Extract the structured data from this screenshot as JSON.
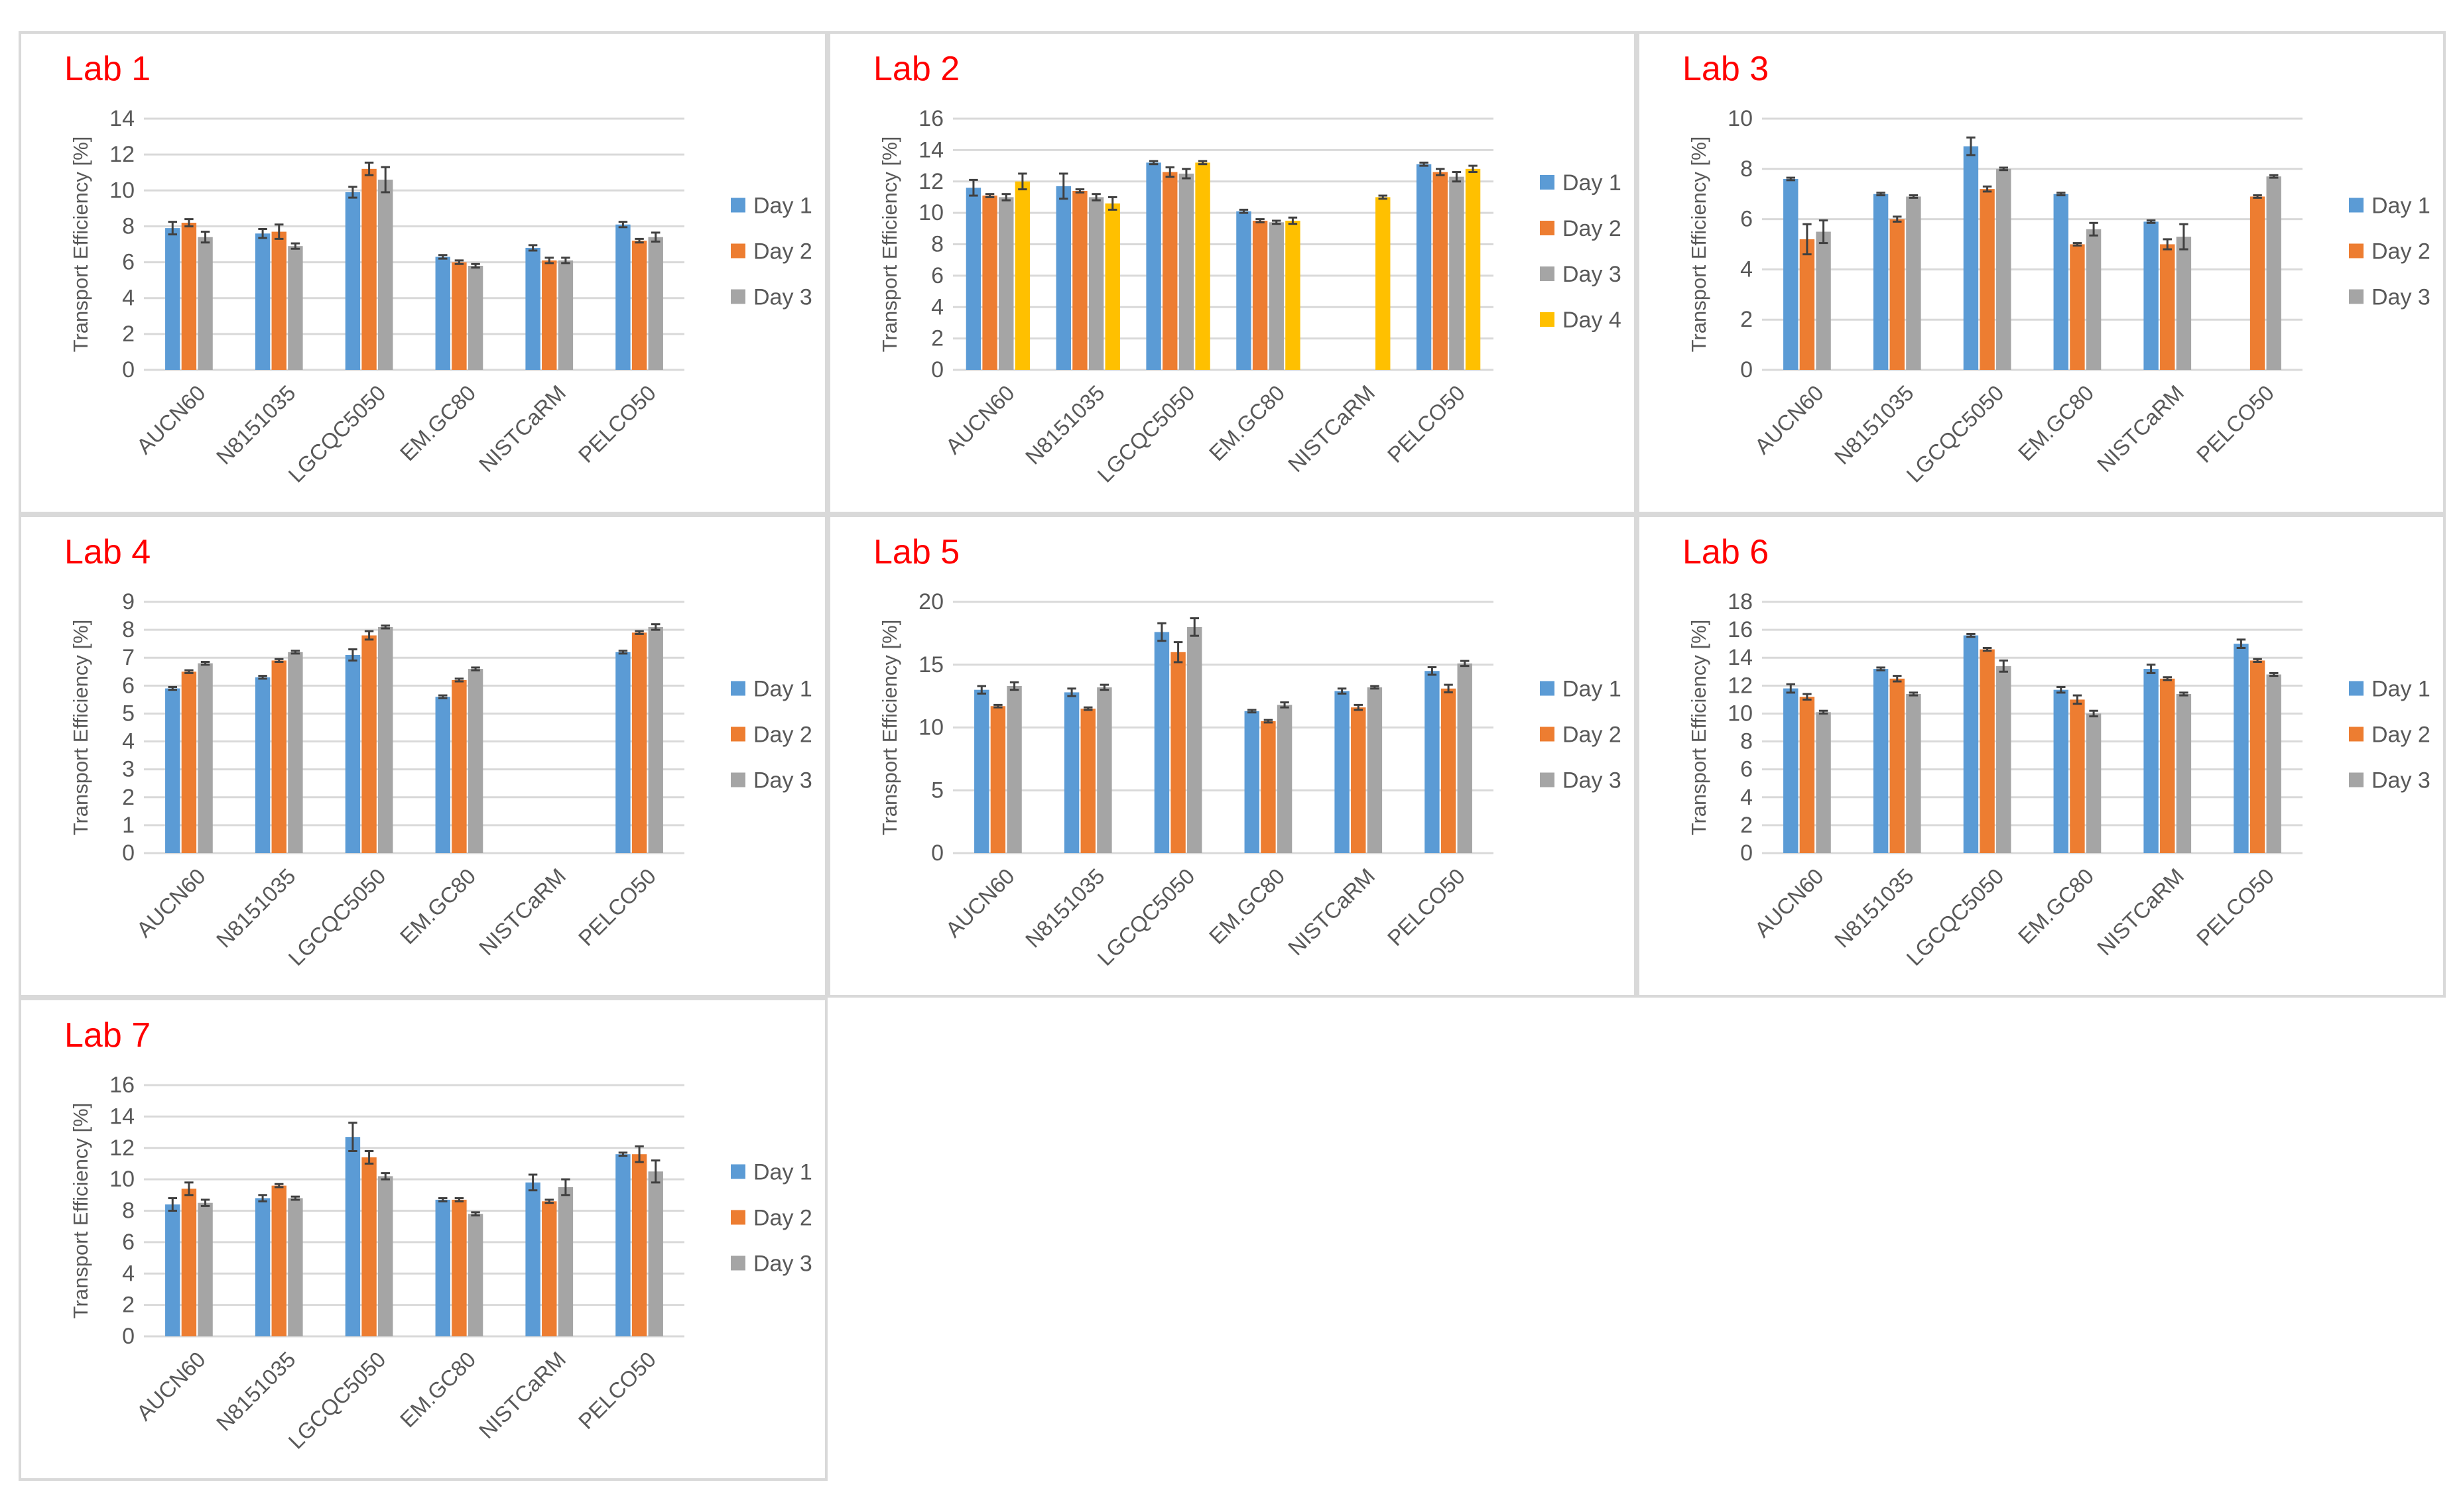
{
  "colors": {
    "Day 1": "#5b9bd5",
    "Day 2": "#ed7d31",
    "Day 3": "#a5a5a5",
    "Day 4": "#ffc000"
  },
  "chart_data": [
    {
      "type": "bar",
      "title": "Lab 1",
      "ylabel": "Transport Efficiency [%]",
      "categories": [
        "AUCN60",
        "N8151035",
        "LGCQC5050",
        "EM.GC80",
        "NISTCaRM",
        "PELCO50"
      ],
      "ylim": [
        0,
        14
      ],
      "yticks": [
        "0",
        "2",
        "4",
        "6",
        "8",
        "10",
        "12",
        "14"
      ],
      "series": [
        {
          "name": "Day 1",
          "values": [
            7.9,
            7.6,
            9.9,
            6.3,
            6.8,
            8.1
          ],
          "errors": [
            0.35,
            0.25,
            0.3,
            0.1,
            0.15,
            0.15
          ]
        },
        {
          "name": "Day 2",
          "values": [
            8.2,
            7.7,
            11.2,
            6.0,
            6.1,
            7.2
          ],
          "errors": [
            0.2,
            0.4,
            0.35,
            0.1,
            0.15,
            0.1
          ]
        },
        {
          "name": "Day 3",
          "values": [
            7.4,
            6.9,
            10.6,
            5.8,
            6.1,
            7.4
          ],
          "errors": [
            0.3,
            0.15,
            0.7,
            0.1,
            0.15,
            0.25
          ]
        }
      ]
    },
    {
      "type": "bar",
      "title": "Lab 2",
      "ylabel": "Transport Efficiency [%]",
      "categories": [
        "AUCN60",
        "N8151035",
        "LGCQC5050",
        "EM.GC80",
        "NISTCaRM",
        "PELCO50"
      ],
      "ylim": [
        0,
        16
      ],
      "yticks": [
        "0",
        "2",
        "4",
        "6",
        "8",
        "10",
        "12",
        "14",
        "16"
      ],
      "series": [
        {
          "name": "Day 1",
          "values": [
            11.6,
            11.7,
            13.2,
            10.1,
            null,
            13.1
          ],
          "errors": [
            0.5,
            0.8,
            0.1,
            0.1,
            null,
            0.1
          ]
        },
        {
          "name": "Day 2",
          "values": [
            11.1,
            11.4,
            12.6,
            9.5,
            null,
            12.6
          ],
          "errors": [
            0.1,
            0.1,
            0.3,
            0.1,
            null,
            0.2
          ]
        },
        {
          "name": "Day 3",
          "values": [
            11.0,
            11.0,
            12.5,
            9.4,
            null,
            12.3
          ],
          "errors": [
            0.2,
            0.2,
            0.3,
            0.1,
            null,
            0.3
          ]
        },
        {
          "name": "Day 4",
          "values": [
            12.0,
            10.6,
            13.2,
            9.5,
            11.0,
            12.8
          ],
          "errors": [
            0.5,
            0.4,
            0.1,
            0.2,
            0.1,
            0.2
          ]
        }
      ]
    },
    {
      "type": "bar",
      "title": "Lab 3",
      "ylabel": "Transport Efficiency [%]",
      "categories": [
        "AUCN60",
        "N8151035",
        "LGCQC5050",
        "EM.GC80",
        "NISTCaRM",
        "PELCO50"
      ],
      "ylim": [
        0,
        10
      ],
      "yticks": [
        "0",
        "2",
        "4",
        "6",
        "8",
        "10"
      ],
      "series": [
        {
          "name": "Day 1",
          "values": [
            7.6,
            7.0,
            8.9,
            7.0,
            5.9,
            null
          ],
          "errors": [
            0.05,
            0.05,
            0.35,
            0.05,
            0.05,
            null
          ]
        },
        {
          "name": "Day 2",
          "values": [
            5.2,
            6.0,
            7.2,
            5.0,
            5.0,
            6.9
          ],
          "errors": [
            0.6,
            0.1,
            0.1,
            0.05,
            0.2,
            0.05
          ]
        },
        {
          "name": "Day 3",
          "values": [
            5.5,
            6.9,
            8.0,
            5.6,
            5.3,
            7.7
          ],
          "errors": [
            0.45,
            0.05,
            0.05,
            0.25,
            0.5,
            0.05
          ]
        }
      ]
    },
    {
      "type": "bar",
      "title": "Lab 4",
      "ylabel": "Transport Efficiency [%]",
      "categories": [
        "AUCN60",
        "N8151035",
        "LGCQC5050",
        "EM.GC80",
        "NISTCaRM",
        "PELCO50"
      ],
      "ylim": [
        0,
        9
      ],
      "yticks": [
        "0",
        "1",
        "2",
        "3",
        "4",
        "5",
        "6",
        "7",
        "8",
        "9"
      ],
      "series": [
        {
          "name": "Day 1",
          "values": [
            5.9,
            6.3,
            7.1,
            5.6,
            null,
            7.2
          ],
          "errors": [
            0.05,
            0.05,
            0.2,
            0.05,
            null,
            0.05
          ]
        },
        {
          "name": "Day 2",
          "values": [
            6.5,
            6.9,
            7.8,
            6.2,
            null,
            7.9
          ],
          "errors": [
            0.05,
            0.05,
            0.15,
            0.05,
            null,
            0.05
          ]
        },
        {
          "name": "Day 3",
          "values": [
            6.8,
            7.2,
            8.1,
            6.6,
            null,
            8.1
          ],
          "errors": [
            0.05,
            0.05,
            0.05,
            0.05,
            null,
            0.1
          ]
        }
      ]
    },
    {
      "type": "bar",
      "title": "Lab 5",
      "ylabel": "Transport Efficiency [%]",
      "categories": [
        "AUCN60",
        "N8151035",
        "LGCQC5050",
        "EM.GC80",
        "NISTCaRM",
        "PELCO50"
      ],
      "ylim": [
        0,
        20
      ],
      "yticks": [
        "0",
        "5",
        "10",
        "15",
        "20"
      ],
      "series": [
        {
          "name": "Day 1",
          "values": [
            13.0,
            12.8,
            17.6,
            11.3,
            12.9,
            14.5
          ],
          "errors": [
            0.3,
            0.3,
            0.7,
            0.1,
            0.2,
            0.3
          ]
        },
        {
          "name": "Day 2",
          "values": [
            11.7,
            11.5,
            16.0,
            10.5,
            11.6,
            13.1
          ],
          "errors": [
            0.1,
            0.1,
            0.8,
            0.1,
            0.2,
            0.3
          ]
        },
        {
          "name": "Day 3",
          "values": [
            13.3,
            13.2,
            18.0,
            11.8,
            13.2,
            15.1
          ],
          "errors": [
            0.3,
            0.2,
            0.7,
            0.2,
            0.1,
            0.2
          ]
        }
      ]
    },
    {
      "type": "bar",
      "title": "Lab 6",
      "ylabel": "Transport Efficiency [%]",
      "categories": [
        "AUCN60",
        "N8151035",
        "LGCQC5050",
        "EM.GC80",
        "NISTCaRM",
        "PELCO50"
      ],
      "ylim": [
        0,
        18
      ],
      "yticks": [
        "0",
        "2",
        "4",
        "6",
        "8",
        "10",
        "12",
        "14",
        "16",
        "18"
      ],
      "series": [
        {
          "name": "Day 1",
          "values": [
            11.8,
            13.2,
            15.6,
            11.7,
            13.2,
            15.0
          ],
          "errors": [
            0.3,
            0.1,
            0.1,
            0.2,
            0.3,
            0.3
          ]
        },
        {
          "name": "Day 2",
          "values": [
            11.2,
            12.5,
            14.6,
            11.0,
            12.5,
            13.8
          ],
          "errors": [
            0.2,
            0.2,
            0.1,
            0.3,
            0.1,
            0.1
          ]
        },
        {
          "name": "Day 3",
          "values": [
            10.1,
            11.4,
            13.4,
            10.0,
            11.4,
            12.8
          ],
          "errors": [
            0.1,
            0.1,
            0.4,
            0.2,
            0.1,
            0.1
          ]
        }
      ]
    },
    {
      "type": "bar",
      "title": "Lab 7",
      "ylabel": "Transport Efficiency [%]",
      "categories": [
        "AUCN60",
        "N8151035",
        "LGCQC5050",
        "EM.GC80",
        "NISTCaRM",
        "PELCO50"
      ],
      "ylim": [
        0,
        16
      ],
      "yticks": [
        "0",
        "2",
        "4",
        "6",
        "8",
        "10",
        "12",
        "14",
        "16"
      ],
      "series": [
        {
          "name": "Day 1",
          "values": [
            8.4,
            8.8,
            12.7,
            8.7,
            9.8,
            11.6
          ],
          "errors": [
            0.4,
            0.2,
            0.9,
            0.1,
            0.5,
            0.1
          ]
        },
        {
          "name": "Day 2",
          "values": [
            9.4,
            9.6,
            11.4,
            8.7,
            8.6,
            11.6
          ],
          "errors": [
            0.4,
            0.1,
            0.4,
            0.1,
            0.1,
            0.5
          ]
        },
        {
          "name": "Day 3",
          "values": [
            8.5,
            8.8,
            10.2,
            7.8,
            9.5,
            10.5
          ],
          "errors": [
            0.2,
            0.1,
            0.2,
            0.1,
            0.5,
            0.7
          ]
        }
      ]
    }
  ]
}
